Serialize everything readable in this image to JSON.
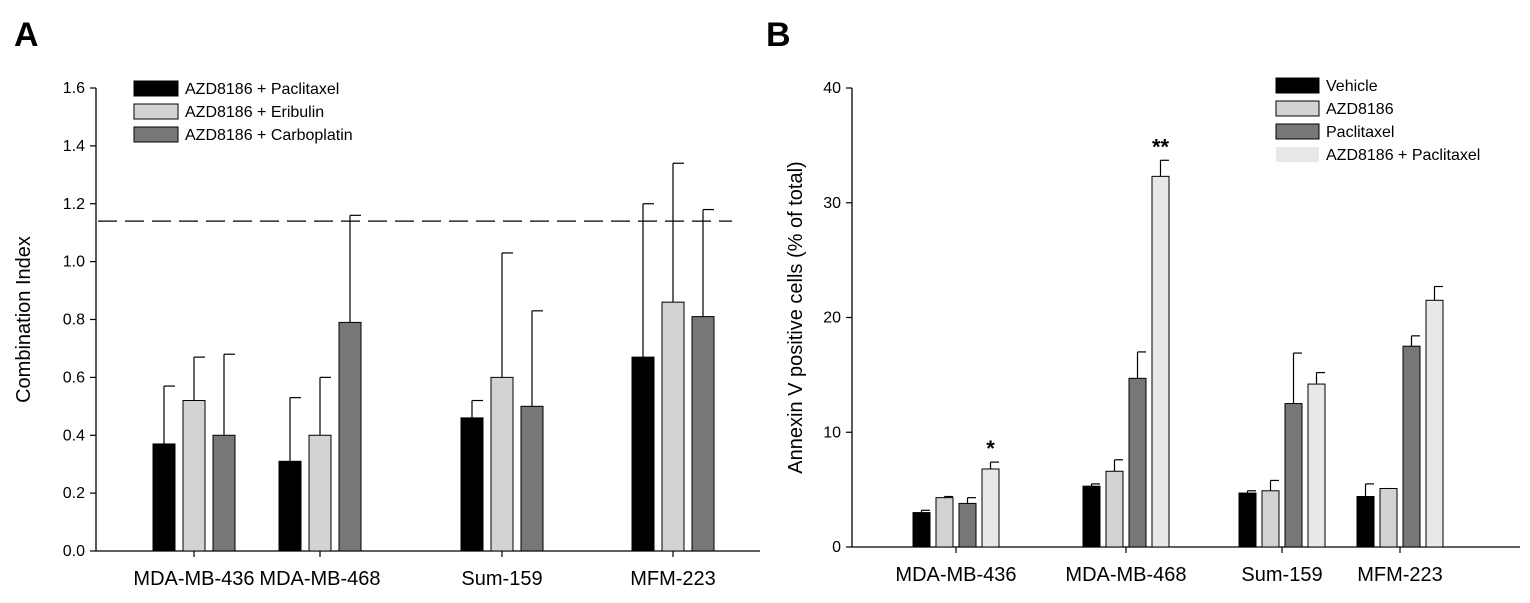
{
  "panels": [
    {
      "panel_label": "A",
      "legend": [
        "AZD8186 + Paclitaxel",
        "AZD8186 + Eribulin",
        "AZD8186 + Carboplatin"
      ]
    },
    {
      "panel_label": "B",
      "legend": [
        "Vehicle",
        "AZD8186",
        "Paclitaxel",
        "AZD8186 + Paclitaxel"
      ]
    }
  ],
  "chart_data": [
    {
      "type": "bar",
      "title": "",
      "xlabel": "",
      "ylabel": "Combination Index",
      "ylim": [
        0,
        1.6
      ],
      "yticks": [
        "0.0",
        "0.2",
        "0.4",
        "0.6",
        "0.8",
        "1.0",
        "1.2",
        "1.4",
        "1.6"
      ],
      "categories": [
        "MDA-MB-436",
        "MDA-MB-468",
        "Sum-159",
        "MFM-223"
      ],
      "series": [
        {
          "name": "AZD8186 + Paclitaxel",
          "color": "#000000",
          "values": [
            0.37,
            0.31,
            0.46,
            0.67
          ],
          "error_upper": [
            0.57,
            0.53,
            0.52,
            1.2
          ]
        },
        {
          "name": "AZD8186 + Eribulin",
          "color": "#d3d3d3",
          "values": [
            0.52,
            0.4,
            0.6,
            0.86
          ],
          "error_upper": [
            0.67,
            0.6,
            1.03,
            1.34
          ]
        },
        {
          "name": "AZD8186 + Carboplatin",
          "color": "#777777",
          "values": [
            0.4,
            0.79,
            0.5,
            0.81
          ],
          "error_upper": [
            0.68,
            1.16,
            0.83,
            1.18
          ]
        }
      ],
      "reference_line": {
        "y": 1.14,
        "style": "dashed"
      },
      "grid": false,
      "legend_position": "top-left"
    },
    {
      "type": "bar",
      "title": "",
      "xlabel": "",
      "ylabel": "Annexin V positive cells (% of total)",
      "ylim": [
        0,
        40
      ],
      "yticks": [
        "0",
        "10",
        "20",
        "30",
        "40"
      ],
      "categories": [
        "MDA-MB-436",
        "MDA-MB-468",
        "Sum-159",
        "MFM-223"
      ],
      "series": [
        {
          "name": "Vehicle",
          "color": "#000000",
          "values": [
            3.0,
            5.3,
            4.7,
            4.4
          ],
          "error_upper": [
            3.2,
            5.5,
            4.9,
            5.5
          ]
        },
        {
          "name": "AZD8186",
          "color": "#d3d3d3",
          "values": [
            4.3,
            6.6,
            4.9,
            5.1
          ],
          "error_upper": [
            4.4,
            7.6,
            5.8,
            5.1
          ]
        },
        {
          "name": "Paclitaxel",
          "color": "#777777",
          "values": [
            3.8,
            14.7,
            12.5,
            17.5
          ],
          "error_upper": [
            4.3,
            17.0,
            16.9,
            18.4
          ]
        },
        {
          "name": "AZD8186 + Paclitaxel",
          "color": "#e8e8e8",
          "values": [
            6.8,
            32.3,
            14.2,
            21.5
          ],
          "error_upper": [
            7.4,
            33.7,
            15.2,
            22.7
          ]
        }
      ],
      "annotations": [
        {
          "text": "*",
          "category": "MDA-MB-436",
          "series": "AZD8186 + Paclitaxel"
        },
        {
          "text": "**",
          "category": "MDA-MB-468",
          "series": "AZD8186 + Paclitaxel"
        }
      ],
      "grid": false,
      "legend_position": "top-right"
    }
  ]
}
